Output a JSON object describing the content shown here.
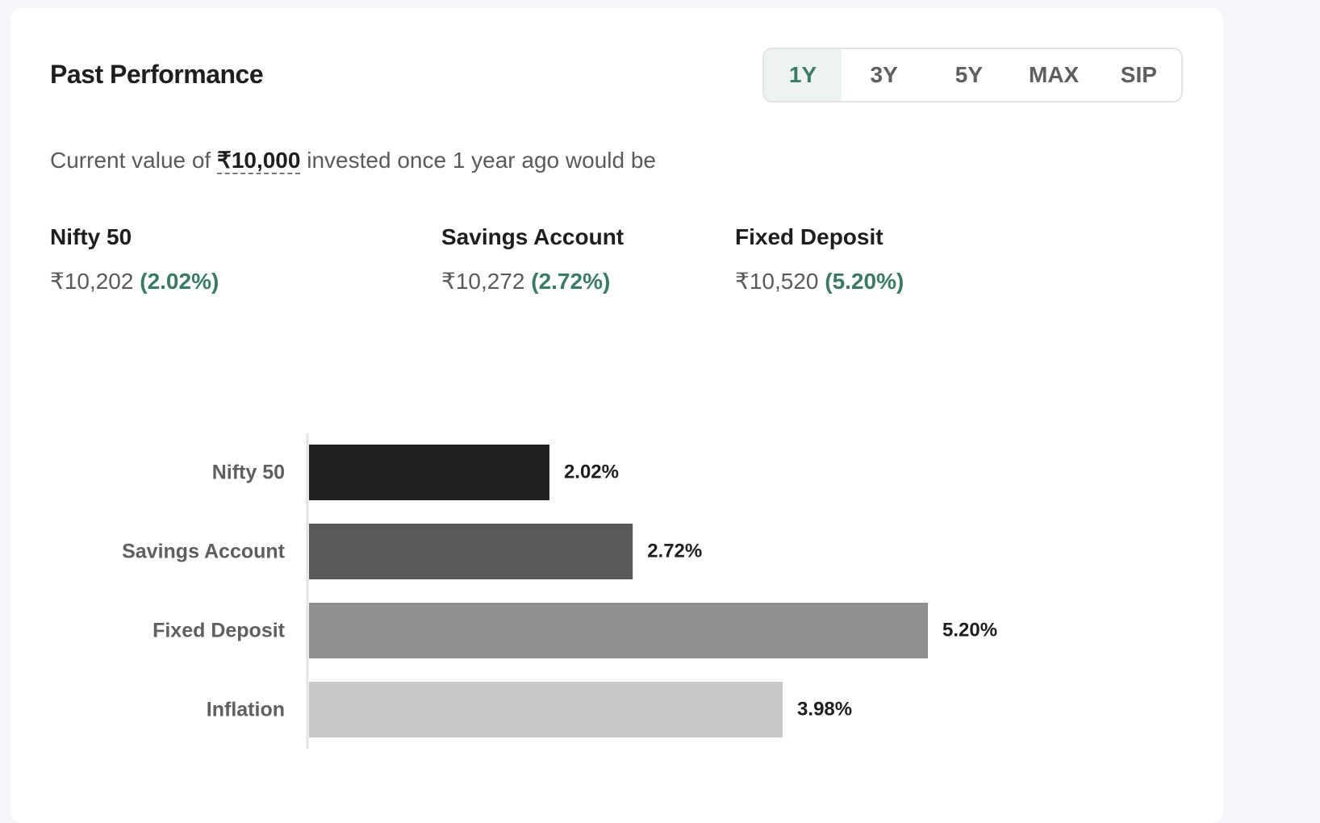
{
  "header": {
    "title": "Past Performance"
  },
  "tabs": [
    {
      "label": "1Y",
      "active": true
    },
    {
      "label": "3Y"
    },
    {
      "label": "5Y"
    },
    {
      "label": "MAX"
    },
    {
      "label": "SIP"
    }
  ],
  "summary": {
    "prefix": "Current value of",
    "amount": "₹10,000",
    "suffix": "invested once 1 year ago would be"
  },
  "instruments": [
    {
      "label": "Nifty 50",
      "value": "₹10,202",
      "pct": "(2.02%)"
    },
    {
      "label": "Savings Account",
      "value": "₹10,272",
      "pct": "(2.72%)"
    },
    {
      "label": "Fixed Deposit",
      "value": "₹10,520",
      "pct": "(5.20%)"
    }
  ],
  "colors": {
    "accent": "#3b7a63"
  },
  "chart_data": {
    "type": "bar",
    "orientation": "horizontal",
    "categories": [
      "Nifty 50",
      "Savings Account",
      "Fixed Deposit",
      "Inflation"
    ],
    "values": [
      2.02,
      2.72,
      5.2,
      3.98
    ],
    "data_labels": [
      "2.02%",
      "2.72%",
      "5.20%",
      "3.98%"
    ],
    "colors": [
      "#202020",
      "#595959",
      "#8f8f8f",
      "#c8c8c8"
    ],
    "xlim": [
      0,
      5.2
    ],
    "grid": false
  }
}
